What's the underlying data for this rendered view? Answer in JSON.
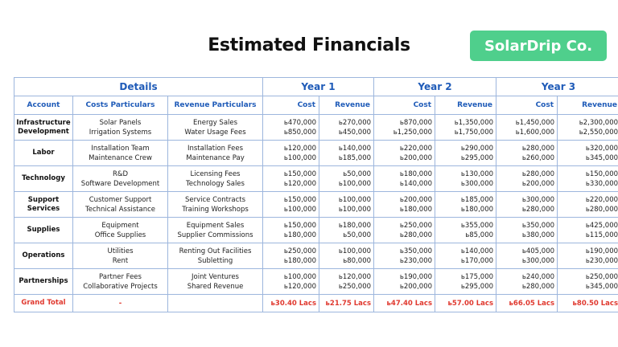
{
  "header": {
    "title": "Estimated Financials",
    "brand": "SolarDrip Co."
  },
  "table": {
    "groups": [
      "Details",
      "Year 1",
      "Year 2",
      "Year 3"
    ],
    "columns": [
      "Account",
      "Costs Particulars",
      "Revenue Particulars",
      "Cost",
      "Revenue",
      "Cost",
      "Revenue",
      "Cost",
      "Revenue"
    ],
    "rows": [
      {
        "account": [
          "Infrastructure",
          "Development"
        ],
        "costs": [
          "Solar Panels",
          "Irrigation Systems"
        ],
        "revenues": [
          "Energy Sales",
          "Water Usage Fees"
        ],
        "y1c": [
          "ь470,000",
          "ь850,000"
        ],
        "y1r": [
          "ь270,000",
          "ь450,000"
        ],
        "y2c": [
          "ь870,000",
          "ь1,250,000"
        ],
        "y2r": [
          "ь1,350,000",
          "ь1,750,000"
        ],
        "y3c": [
          "ь1,450,000",
          "ь1,600,000"
        ],
        "y3r": [
          "ь2,300,000",
          "ь2,550,000"
        ]
      },
      {
        "account": [
          "Labor"
        ],
        "costs": [
          "Installation Team",
          "Maintenance Crew"
        ],
        "revenues": [
          "Installation Fees",
          "Maintenance Pay"
        ],
        "y1c": [
          "ь120,000",
          "ь100,000"
        ],
        "y1r": [
          "ь140,000",
          "ь185,000"
        ],
        "y2c": [
          "ь220,000",
          "ь200,000"
        ],
        "y2r": [
          "ь290,000",
          "ь295,000"
        ],
        "y3c": [
          "ь280,000",
          "ь260,000"
        ],
        "y3r": [
          "ь320,000",
          "ь345,000"
        ]
      },
      {
        "account": [
          "Technology"
        ],
        "costs": [
          "R&D",
          "Software Development"
        ],
        "revenues": [
          "Licensing Fees",
          "Technology Sales"
        ],
        "y1c": [
          "ь150,000",
          "ь120,000"
        ],
        "y1r": [
          "ь50,000",
          "ь100,000"
        ],
        "y2c": [
          "ь180,000",
          "ь140,000"
        ],
        "y2r": [
          "ь130,000",
          "ь300,000"
        ],
        "y3c": [
          "ь280,000",
          "ь200,000"
        ],
        "y3r": [
          "ь150,000",
          "ь330,000"
        ]
      },
      {
        "account": [
          "Support",
          "Services"
        ],
        "costs": [
          "Customer Support",
          "Technical Assistance"
        ],
        "revenues": [
          "Service Contracts",
          "Training Workshops"
        ],
        "y1c": [
          "ь150,000",
          "ь100,000"
        ],
        "y1r": [
          "ь100,000",
          "ь100,000"
        ],
        "y2c": [
          "ь200,000",
          "ь180,000"
        ],
        "y2r": [
          "ь185,000",
          "ь180,000"
        ],
        "y3c": [
          "ь300,000",
          "ь280,000"
        ],
        "y3r": [
          "ь220,000",
          "ь280,000"
        ]
      },
      {
        "account": [
          "Supplies"
        ],
        "costs": [
          "Equipment",
          "Office Supplies"
        ],
        "revenues": [
          "Equipment Sales",
          "Supplier Commissions"
        ],
        "y1c": [
          "ь150,000",
          "ь180,000"
        ],
        "y1r": [
          "ь180,000",
          "ь50,000"
        ],
        "y2c": [
          "ь250,000",
          "ь280,000"
        ],
        "y2r": [
          "ь355,000",
          "ь85,000"
        ],
        "y3c": [
          "ь350,000",
          "ь380,000"
        ],
        "y3r": [
          "ь425,000",
          "ь115,000"
        ]
      },
      {
        "account": [
          "Operations"
        ],
        "costs": [
          "Utilities",
          "Rent"
        ],
        "revenues": [
          "Renting Out Facilities",
          "Subletting"
        ],
        "y1c": [
          "ь250,000",
          "ь180,000"
        ],
        "y1r": [
          "ь100,000",
          "ь80,000"
        ],
        "y2c": [
          "ь350,000",
          "ь230,000"
        ],
        "y2r": [
          "ь140,000",
          "ь170,000"
        ],
        "y3c": [
          "ь405,000",
          "ь300,000"
        ],
        "y3r": [
          "ь190,000",
          "ь230,000"
        ]
      },
      {
        "account": [
          "Partnerships"
        ],
        "costs": [
          "Partner Fees",
          "Collaborative Projects"
        ],
        "revenues": [
          "Joint Ventures",
          "Shared Revenue"
        ],
        "y1c": [
          "ь100,000",
          "ь120,000"
        ],
        "y1r": [
          "ь120,000",
          "ь250,000"
        ],
        "y2c": [
          "ь190,000",
          "ь200,000"
        ],
        "y2r": [
          "ь175,000",
          "ь295,000"
        ],
        "y3c": [
          "ь240,000",
          "ь280,000"
        ],
        "y3r": [
          "ь250,000",
          "ь345,000"
        ]
      }
    ],
    "total": {
      "label": "Grand Total",
      "costs": "-",
      "revenues": "",
      "values": [
        "ь30.40 Lacs",
        "ь21.75 Lacs",
        "ь47.40 Lacs",
        "ь57.00 Lacs",
        "ь66.05 Lacs",
        "ь80.50 Lacs"
      ]
    }
  },
  "colors": {
    "accent": "#1f5bb8",
    "brand_bg": "#4fcf8c",
    "total": "#e0392f",
    "border": "#9db6dd"
  }
}
